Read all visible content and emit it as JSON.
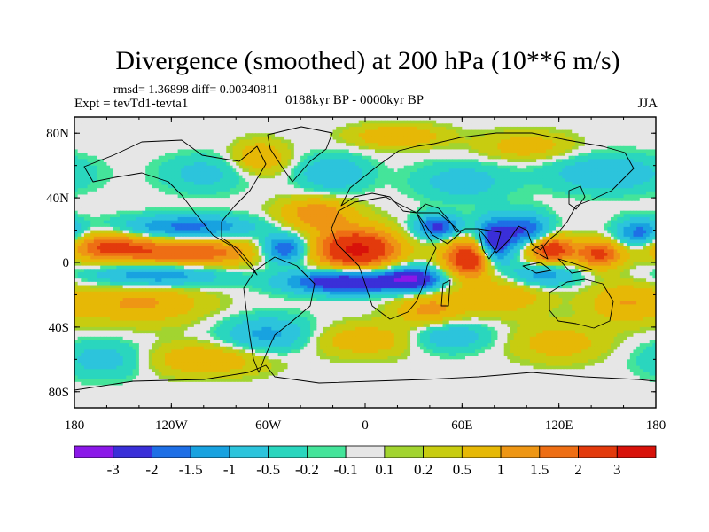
{
  "chart_data": {
    "type": "heatmap",
    "title": "Divergence (smoothed) at 200 hPa (10**6 m/s)",
    "rmsd_text": "rmsd= 1.36898 diff= 0.00340811",
    "expt_text": "Expt = tevTd1-tevta1",
    "period_text": "0188kyr BP - 0000kyr BP",
    "season_text": "JJA",
    "x_axis": {
      "range": [
        -180,
        180
      ],
      "ticks": [
        -180,
        -120,
        -60,
        0,
        60,
        120,
        180
      ],
      "labels": [
        "180",
        "120W",
        "60W",
        "0",
        "60E",
        "120E",
        "180"
      ]
    },
    "y_axis": {
      "range": [
        -90,
        90
      ],
      "ticks": [
        80,
        40,
        0,
        -40,
        -80
      ],
      "labels": [
        "80N",
        "40N",
        "0",
        "40S",
        "80S"
      ]
    },
    "colorbar": {
      "labels": [
        "-3",
        "-2",
        "-1.5",
        "-1",
        "-0.5",
        "-0.2",
        "-0.1",
        "0.1",
        "0.2",
        "0.5",
        "1",
        "1.5",
        "2",
        "3"
      ],
      "colors": [
        "#8b18e8",
        "#3a2fd8",
        "#1e6fe6",
        "#18a2e0",
        "#2cc4dc",
        "#2ad6be",
        "#44e49a",
        "#e6e6e6",
        "#a2d430",
        "#c8cc10",
        "#e6b806",
        "#ee9614",
        "#ee6e14",
        "#e33a0c",
        "#d8120a"
      ]
    },
    "anomalies": [
      {
        "lon": -5,
        "lat": 8,
        "value": 3.2,
        "sx": 18,
        "sy": 9
      },
      {
        "lon": 65,
        "lat": 3,
        "value": 3.0,
        "sx": 11,
        "sy": 8
      },
      {
        "lon": 115,
        "lat": 8,
        "value": 2.6,
        "sx": 10,
        "sy": 6
      },
      {
        "lon": 145,
        "lat": 5,
        "value": 2.2,
        "sx": 10,
        "sy": 6
      },
      {
        "lon": -110,
        "lat": 6,
        "value": 2.0,
        "sx": 32,
        "sy": 6
      },
      {
        "lon": -160,
        "lat": 10,
        "value": 1.8,
        "sx": 18,
        "sy": 6
      },
      {
        "lon": -30,
        "lat": 30,
        "value": 1.4,
        "sx": 16,
        "sy": 7
      },
      {
        "lon": -140,
        "lat": -25,
        "value": 1.1,
        "sx": 28,
        "sy": 9
      },
      {
        "lon": 85,
        "lat": -20,
        "value": 0.9,
        "sx": 20,
        "sy": 9
      },
      {
        "lon": 160,
        "lat": -25,
        "value": 0.9,
        "sx": 16,
        "sy": 9
      },
      {
        "lon": 40,
        "lat": -30,
        "value": 1.2,
        "sx": 15,
        "sy": 8
      },
      {
        "lon": -65,
        "lat": 65,
        "value": 1.0,
        "sx": 12,
        "sy": 7
      },
      {
        "lon": 20,
        "lat": 78,
        "value": 1.0,
        "sx": 20,
        "sy": 5
      },
      {
        "lon": 100,
        "lat": 72,
        "value": 0.8,
        "sx": 20,
        "sy": 6
      },
      {
        "lon": 0,
        "lat": -48,
        "value": 0.9,
        "sx": 25,
        "sy": 7
      },
      {
        "lon": -100,
        "lat": -60,
        "value": 1.0,
        "sx": 28,
        "sy": 7
      },
      {
        "lon": 120,
        "lat": -50,
        "value": 0.8,
        "sx": 20,
        "sy": 8
      },
      {
        "lon": -10,
        "lat": -12,
        "value": -3.0,
        "sx": 26,
        "sy": 5
      },
      {
        "lon": 30,
        "lat": -10,
        "value": -2.5,
        "sx": 12,
        "sy": 5
      },
      {
        "lon": 80,
        "lat": 12,
        "value": -2.9,
        "sx": 8,
        "sy": 10
      },
      {
        "lon": 45,
        "lat": 22,
        "value": -2.2,
        "sx": 10,
        "sy": 5
      },
      {
        "lon": 100,
        "lat": 20,
        "value": -2.0,
        "sx": 10,
        "sy": 7
      },
      {
        "lon": 170,
        "lat": 18,
        "value": -1.8,
        "sx": 10,
        "sy": 6
      },
      {
        "lon": -110,
        "lat": 22,
        "value": -1.7,
        "sx": 28,
        "sy": 5
      },
      {
        "lon": -50,
        "lat": 8,
        "value": -2.3,
        "sx": 10,
        "sy": 6
      },
      {
        "lon": -130,
        "lat": -8,
        "value": -1.6,
        "sx": 28,
        "sy": 5
      },
      {
        "lon": 110,
        "lat": -8,
        "value": -1.4,
        "sx": 15,
        "sy": 5
      },
      {
        "lon": 50,
        "lat": -45,
        "value": -1.1,
        "sx": 18,
        "sy": 7
      },
      {
        "lon": -60,
        "lat": -45,
        "value": -1.2,
        "sx": 20,
        "sy": 8
      },
      {
        "lon": 150,
        "lat": 55,
        "value": -1.0,
        "sx": 25,
        "sy": 8
      },
      {
        "lon": -20,
        "lat": 55,
        "value": -1.0,
        "sx": 15,
        "sy": 8
      },
      {
        "lon": 60,
        "lat": 50,
        "value": -0.8,
        "sx": 20,
        "sy": 8
      },
      {
        "lon": -160,
        "lat": -60,
        "value": -0.8,
        "sx": 20,
        "sy": 8
      },
      {
        "lon": -100,
        "lat": 55,
        "value": -0.7,
        "sx": 18,
        "sy": 8
      }
    ]
  }
}
